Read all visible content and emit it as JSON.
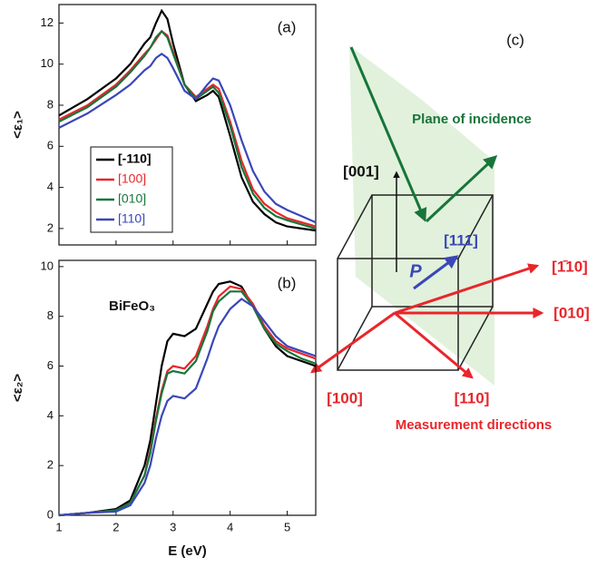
{
  "chart_data": [
    {
      "type": "line",
      "panel_label": "(a)",
      "y_label": "<ε₁>",
      "x": [
        1,
        1.5,
        2,
        2.25,
        2.5,
        2.6,
        2.7,
        2.8,
        2.9,
        3.0,
        3.2,
        3.4,
        3.6,
        3.7,
        3.8,
        4.0,
        4.2,
        4.4,
        4.6,
        4.8,
        5.0,
        5.25,
        5.5
      ],
      "xlim": [
        1,
        5.5
      ],
      "xticks": [
        1,
        2,
        3,
        4,
        5
      ],
      "xtick_labels": false,
      "ylim": [
        1.2,
        12.9
      ],
      "yticks": [
        2,
        4,
        6,
        8,
        10,
        12
      ],
      "legend": "lower left",
      "series": [
        {
          "name": "[-110]",
          "color": "#000000",
          "values": [
            7.5,
            8.3,
            9.3,
            10.0,
            11.0,
            11.3,
            12.0,
            12.6,
            12.2,
            11.0,
            9.0,
            8.2,
            8.5,
            8.7,
            8.4,
            6.5,
            4.5,
            3.3,
            2.7,
            2.3,
            2.1,
            2.0,
            1.9
          ]
        },
        {
          "name": "[100]",
          "color": "#e8262b",
          "values": [
            7.3,
            8.0,
            9.0,
            9.7,
            10.5,
            10.8,
            11.2,
            11.6,
            11.4,
            10.6,
            9.0,
            8.4,
            8.8,
            9.0,
            8.8,
            7.2,
            5.3,
            3.9,
            3.2,
            2.8,
            2.5,
            2.3,
            2.1
          ]
        },
        {
          "name": "[010]",
          "color": "#17753a",
          "values": [
            7.2,
            7.9,
            8.9,
            9.6,
            10.4,
            10.8,
            11.3,
            11.6,
            11.3,
            10.5,
            9.0,
            8.3,
            8.7,
            8.9,
            8.6,
            7.0,
            5.0,
            3.7,
            3.0,
            2.6,
            2.4,
            2.2,
            2.0
          ]
        },
        {
          "name": "[110]",
          "color": "#3a47b8",
          "values": [
            6.9,
            7.6,
            8.5,
            9.0,
            9.7,
            9.9,
            10.3,
            10.5,
            10.3,
            9.8,
            8.7,
            8.3,
            9.0,
            9.3,
            9.2,
            8.0,
            6.3,
            4.8,
            3.8,
            3.2,
            2.9,
            2.6,
            2.3
          ]
        }
      ]
    },
    {
      "type": "line",
      "panel_label": "(b)",
      "annotation": "BiFeO₃",
      "y_label": "<ε₂>",
      "x_label": "E (eV)",
      "x": [
        1,
        1.5,
        2,
        2.25,
        2.5,
        2.6,
        2.7,
        2.8,
        2.9,
        3.0,
        3.2,
        3.4,
        3.6,
        3.7,
        3.8,
        4.0,
        4.2,
        4.4,
        4.6,
        4.8,
        5.0,
        5.25,
        5.5
      ],
      "xlim": [
        1,
        5.5
      ],
      "xticks": [
        1,
        2,
        3,
        4,
        5
      ],
      "xtick_labels": true,
      "ylim": [
        0,
        10.25
      ],
      "yticks": [
        0,
        2,
        4,
        6,
        8,
        10
      ],
      "series": [
        {
          "color": "#000000",
          "values": [
            0,
            0.1,
            0.25,
            0.6,
            2.0,
            3.0,
            4.5,
            6.0,
            7.0,
            7.3,
            7.2,
            7.5,
            8.5,
            9.0,
            9.3,
            9.4,
            9.2,
            8.4,
            7.5,
            6.8,
            6.4,
            6.2,
            6.0
          ]
        },
        {
          "color": "#e8262b",
          "values": [
            0,
            0.1,
            0.2,
            0.5,
            1.6,
            2.6,
            3.9,
            5.0,
            5.8,
            6.0,
            5.9,
            6.4,
            7.6,
            8.3,
            8.8,
            9.2,
            9.1,
            8.5,
            7.6,
            7.0,
            6.7,
            6.5,
            6.3
          ]
        },
        {
          "color": "#17753a",
          "values": [
            0,
            0.1,
            0.2,
            0.5,
            1.6,
            2.5,
            3.8,
            4.9,
            5.7,
            5.8,
            5.7,
            6.2,
            7.4,
            8.2,
            8.6,
            9.0,
            9.0,
            8.4,
            7.5,
            6.9,
            6.6,
            6.3,
            6.1
          ]
        },
        {
          "color": "#3a47b8",
          "values": [
            0,
            0.1,
            0.15,
            0.4,
            1.3,
            2.0,
            3.1,
            4.0,
            4.6,
            4.8,
            4.7,
            5.1,
            6.3,
            7.0,
            7.6,
            8.3,
            8.7,
            8.4,
            7.8,
            7.2,
            6.8,
            6.6,
            6.4
          ]
        }
      ]
    }
  ],
  "diagram": {
    "panel_label": "(c)",
    "plane": "Plane of incidence",
    "z_axis": "[001]",
    "diagonal": "[111]",
    "polarization": "P",
    "directions": [
      "[1̄10]",
      "[010]",
      "[100]",
      "[110]"
    ],
    "caption": "Measurement directions"
  }
}
